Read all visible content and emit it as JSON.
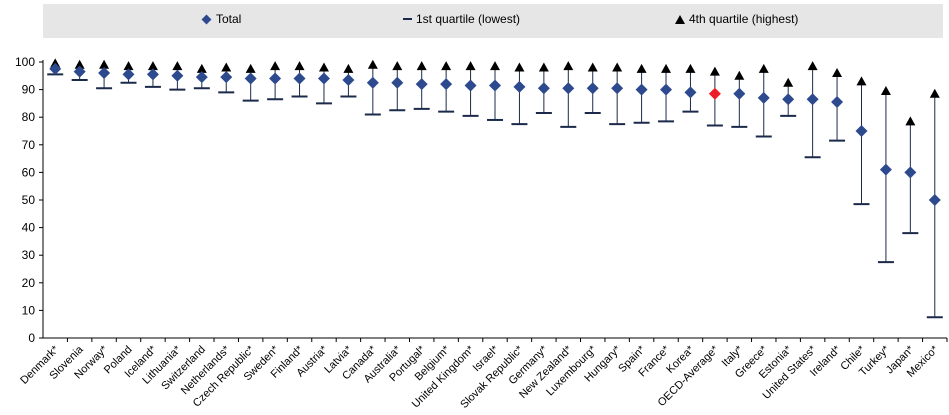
{
  "legend": {
    "total": "Total",
    "q1": "1st quartile (lowest)",
    "q4": "4th quartile (highest)"
  },
  "colors": {
    "total": "#2e4a8f",
    "highlight": "#ee1c25",
    "range": "#1b2a4a",
    "q4": "#000000",
    "legend_bg": "#e6e6e6",
    "axis": "#000000"
  },
  "chart_data": {
    "type": "scatter",
    "categories": [
      "Denmark*",
      "Slovenia",
      "Norway*",
      "Poland",
      "Iceland*",
      "Lithuania*",
      "Switzerland",
      "Netherlands*",
      "Czech Republic*",
      "Sweden*",
      "Finland*",
      "Austria*",
      "Latvia*",
      "Canada*",
      "Australia*",
      "Portugal*",
      "Belgium*",
      "United Kingdom*",
      "Israel*",
      "Slovak Republic*",
      "Germany*",
      "New Zealand*",
      "Luxembourg*",
      "Hungary*",
      "Spain*",
      "France*",
      "Korea*",
      "OECD-Average*",
      "Italy*",
      "Greece*",
      "Estonia*",
      "United States*",
      "Ireland*",
      "Chile*",
      "Turkey*",
      "Japan*",
      "Mexico*"
    ],
    "highlight": "OECD-Average*",
    "series": [
      {
        "name": "Total",
        "marker": "diamond",
        "values": [
          97.5,
          96.5,
          96,
          95.5,
          95.5,
          95,
          94.5,
          94.5,
          94,
          94,
          94,
          94,
          93.5,
          92.5,
          92.5,
          92,
          92,
          91.5,
          91.5,
          91,
          90.5,
          90.5,
          90.5,
          90.5,
          90,
          90,
          89,
          88.5,
          88.5,
          87,
          86.5,
          86.5,
          85.5,
          75,
          61,
          60,
          50
        ]
      },
      {
        "name": "1st quartile (lowest)",
        "marker": "dash",
        "values": [
          95.5,
          93.5,
          90.5,
          92.5,
          91,
          90,
          90.5,
          89,
          86,
          86.5,
          87.5,
          85,
          87.5,
          81,
          82.5,
          83,
          82,
          80.5,
          79,
          77.5,
          81.5,
          76.5,
          81.5,
          77.5,
          78,
          78.5,
          82,
          77,
          76.5,
          73,
          80.5,
          65.5,
          71.5,
          48.5,
          27.5,
          38,
          7.5
        ]
      },
      {
        "name": "4th quartile (highest)",
        "marker": "triangle",
        "values": [
          99.5,
          99,
          99,
          98.5,
          98.5,
          98.5,
          97.5,
          98,
          97.5,
          98.5,
          98.5,
          98,
          97.5,
          99,
          98.5,
          98.5,
          98.5,
          98.5,
          98.5,
          98,
          98,
          98.5,
          98,
          98,
          97.5,
          97.5,
          97.5,
          96.5,
          95,
          97.5,
          92.5,
          98.5,
          96,
          93,
          89.5,
          78.5,
          88.5
        ]
      }
    ],
    "ylim": [
      0,
      100
    ],
    "yticks": [
      "0",
      "10",
      "20",
      "30",
      "40",
      "50",
      "60",
      "70",
      "80",
      "90",
      "100"
    ],
    "grid": false,
    "legend_position": "top"
  }
}
